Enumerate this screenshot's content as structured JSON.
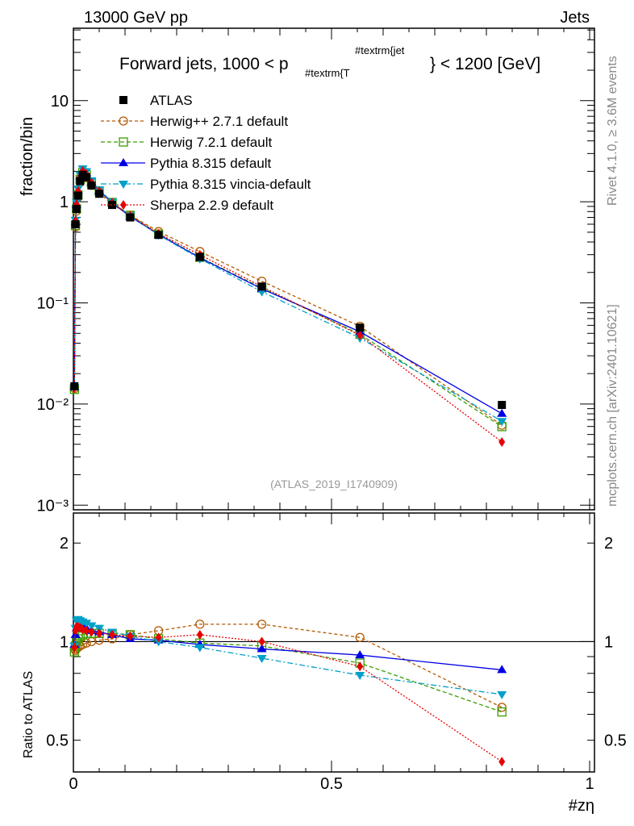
{
  "header": {
    "left": "13000 GeV pp",
    "right": "Jets"
  },
  "side_text": {
    "rivet": "Rivet 4.1.0, ≥ 3.6M events",
    "mcplots": "mcplots.cern.ch [arXiv:2401.10621]"
  },
  "chart_data": [
    {
      "type": "line",
      "panel": "main",
      "title_parts": {
        "main": "Forward jets, 1000 < p",
        "sub": "#textrm{T",
        "sup": "#textrm{jet",
        "end": "} < 1200 [GeV]"
      },
      "xlabel": "#zη",
      "ylabel": "fraction/bin",
      "yscale": "log",
      "xlim": [
        0,
        1
      ],
      "ylim": [
        0.0009,
        52
      ],
      "yticks": [
        {
          "v": 10,
          "label": "10"
        },
        {
          "v": 1,
          "label": "1"
        },
        {
          "v": 0.1,
          "label": "10⁻¹"
        },
        {
          "v": 0.01,
          "label": "10⁻²"
        },
        {
          "v": 0.001,
          "label": "10⁻³"
        }
      ],
      "watermark": "(ATLAS_2019_I1740909)",
      "legend_placement": "top-left",
      "x": [
        0.002,
        0.004,
        0.006,
        0.009,
        0.013,
        0.018,
        0.025,
        0.035,
        0.05,
        0.075,
        0.11,
        0.165,
        0.245,
        0.365,
        0.555,
        0.83
      ],
      "reference": {
        "name": "ATLAS",
        "color": "#000000",
        "values": [
          0.015,
          0.6,
          0.85,
          1.15,
          1.6,
          1.85,
          1.75,
          1.45,
          1.2,
          0.93,
          0.7,
          0.47,
          0.285,
          0.145,
          0.057,
          0.0098
        ]
      },
      "series": [
        {
          "name": "Herwig++ 2.7.1 default",
          "color": "#b35900",
          "marker": "circle",
          "dash": "4,3",
          "ratio": [
            0.95,
            0.94,
            0.95,
            0.96,
            0.97,
            0.98,
            0.99,
            1.0,
            1.01,
            1.02,
            1.05,
            1.08,
            1.13,
            1.13,
            1.03,
            0.63
          ]
        },
        {
          "name": "Herwig 7.2.1 default",
          "color": "#3a9e00",
          "marker": "square",
          "dash": "5,3",
          "ratio": [
            0.93,
            0.97,
            1.0,
            1.02,
            1.04,
            1.05,
            1.06,
            1.06,
            1.06,
            1.06,
            1.05,
            1.02,
            0.99,
            0.97,
            0.86,
            0.61
          ]
        },
        {
          "name": "Pythia 8.315 default",
          "color": "#0000e6",
          "marker": "triangle-up",
          "dash": "",
          "ratio": [
            0.98,
            1.05,
            1.1,
            1.12,
            1.12,
            1.11,
            1.1,
            1.08,
            1.07,
            1.05,
            1.02,
            1.01,
            0.98,
            0.95,
            0.91,
            0.82
          ]
        },
        {
          "name": "Pythia 8.315 vincia-default",
          "color": "#00a0c8",
          "marker": "triangle-down",
          "dash": "7,3,2,3",
          "ratio": [
            0.97,
            1.1,
            1.16,
            1.17,
            1.16,
            1.15,
            1.14,
            1.12,
            1.1,
            1.07,
            1.04,
            1.0,
            0.96,
            0.89,
            0.79,
            0.69
          ]
        },
        {
          "name": "Sherpa 2.2.9 default",
          "color": "#e60000",
          "marker": "diamond",
          "dash": "2,2",
          "ratio": [
            0.96,
            1.08,
            1.11,
            1.11,
            1.1,
            1.09,
            1.08,
            1.07,
            1.06,
            1.05,
            1.04,
            1.03,
            1.05,
            1.0,
            0.84,
            0.43
          ]
        }
      ]
    },
    {
      "type": "line",
      "panel": "ratio",
      "ylabel": "Ratio to ATLAS",
      "yscale": "log",
      "ylim": [
        0.4,
        2.47
      ],
      "yticks": [
        {
          "v": 2,
          "label": "2"
        },
        {
          "v": 1,
          "label": "1"
        },
        {
          "v": 0.5,
          "label": "0.5"
        }
      ],
      "xticks": [
        {
          "v": 0,
          "label": "0"
        },
        {
          "v": 0.5,
          "label": "0.5"
        },
        {
          "v": 1,
          "label": "1"
        }
      ]
    }
  ]
}
